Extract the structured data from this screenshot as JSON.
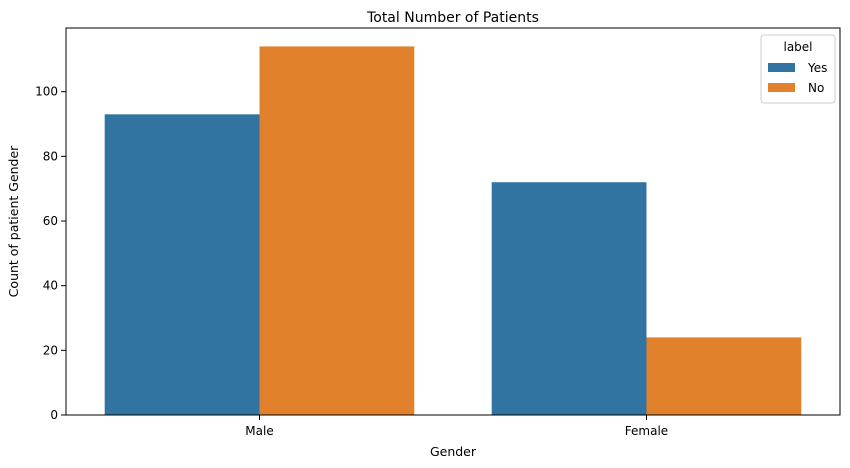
{
  "chart_data": {
    "type": "bar",
    "title": "Total Number of Patients",
    "xlabel": "Gender",
    "ylabel": "Count of patient Gender",
    "categories": [
      "Male",
      "Female"
    ],
    "series": [
      {
        "name": "Yes",
        "values": [
          93,
          72
        ],
        "color": "#3274a1"
      },
      {
        "name": "No",
        "values": [
          114,
          24
        ],
        "color": "#e1812c"
      }
    ],
    "ylim": [
      0,
      119.7
    ],
    "yticks": [
      0,
      20,
      40,
      60,
      80,
      100
    ],
    "grid": false,
    "legend": {
      "title": "label",
      "position": "top-right"
    }
  }
}
